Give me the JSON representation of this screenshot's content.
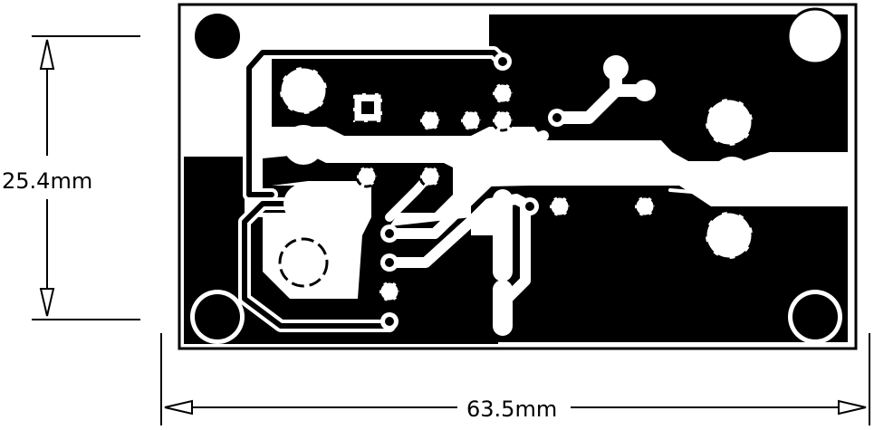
{
  "dimensions": {
    "height_label": "25.4mm",
    "width_label": "63.5mm"
  },
  "colors": {
    "copper": "#000000",
    "background": "#ffffff"
  }
}
